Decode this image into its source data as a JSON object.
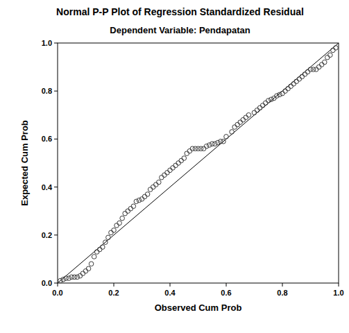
{
  "chart_data": {
    "type": "scatter",
    "title": "Normal P-P Plot of Regression Standardized Residual",
    "subtitle": "Dependent Variable: Pendapatan",
    "x_label": "Observed Cum Prob",
    "y_label": "Expected Cum Prob",
    "x": [
      0.01,
      0.02,
      0.03,
      0.04,
      0.05,
      0.06,
      0.07,
      0.08,
      0.09,
      0.1,
      0.11,
      0.12,
      0.13,
      0.14,
      0.15,
      0.16,
      0.17,
      0.18,
      0.19,
      0.2,
      0.21,
      0.22,
      0.23,
      0.24,
      0.25,
      0.26,
      0.27,
      0.28,
      0.29,
      0.3,
      0.31,
      0.32,
      0.33,
      0.34,
      0.35,
      0.36,
      0.37,
      0.38,
      0.39,
      0.4,
      0.41,
      0.42,
      0.43,
      0.44,
      0.45,
      0.46,
      0.47,
      0.48,
      0.49,
      0.5,
      0.51,
      0.52,
      0.53,
      0.54,
      0.55,
      0.56,
      0.57,
      0.58,
      0.59,
      0.6,
      0.62,
      0.63,
      0.64,
      0.65,
      0.66,
      0.67,
      0.68,
      0.7,
      0.71,
      0.72,
      0.73,
      0.74,
      0.75,
      0.76,
      0.77,
      0.78,
      0.79,
      0.8,
      0.81,
      0.82,
      0.83,
      0.84,
      0.85,
      0.86,
      0.87,
      0.88,
      0.89,
      0.9,
      0.91,
      0.92,
      0.93,
      0.94,
      0.95,
      0.96,
      0.97,
      0.98,
      0.99
    ],
    "values": [
      0.01,
      0.015,
      0.02,
      0.02,
      0.025,
      0.025,
      0.025,
      0.03,
      0.04,
      0.05,
      0.06,
      0.08,
      0.11,
      0.13,
      0.14,
      0.15,
      0.17,
      0.19,
      0.21,
      0.22,
      0.24,
      0.25,
      0.27,
      0.29,
      0.3,
      0.31,
      0.32,
      0.34,
      0.345,
      0.35,
      0.36,
      0.37,
      0.39,
      0.4,
      0.41,
      0.42,
      0.44,
      0.45,
      0.46,
      0.47,
      0.48,
      0.49,
      0.5,
      0.51,
      0.52,
      0.54,
      0.55,
      0.56,
      0.56,
      0.56,
      0.56,
      0.56,
      0.57,
      0.575,
      0.58,
      0.58,
      0.585,
      0.59,
      0.59,
      0.61,
      0.63,
      0.65,
      0.66,
      0.67,
      0.68,
      0.69,
      0.7,
      0.71,
      0.72,
      0.73,
      0.74,
      0.75,
      0.76,
      0.765,
      0.77,
      0.78,
      0.785,
      0.79,
      0.8,
      0.81,
      0.82,
      0.83,
      0.84,
      0.85,
      0.86,
      0.87,
      0.88,
      0.89,
      0.89,
      0.89,
      0.9,
      0.91,
      0.92,
      0.94,
      0.95,
      0.97,
      0.98
    ],
    "color": "#3a3a3a",
    "marker": "circle",
    "xlim": [
      0,
      1
    ],
    "ylim": [
      0,
      1
    ],
    "xticks": [
      {
        "value": 0,
        "label": "0.0"
      },
      0.2,
      0.4,
      0.6,
      0.8,
      {
        "value": 1,
        "label": "1.0"
      }
    ],
    "yticks": [
      {
        "value": 0,
        "label": "0.0"
      },
      0.2,
      0.4,
      0.6,
      0.8,
      {
        "value": 1,
        "label": "1.0"
      }
    ],
    "grid": false
  }
}
